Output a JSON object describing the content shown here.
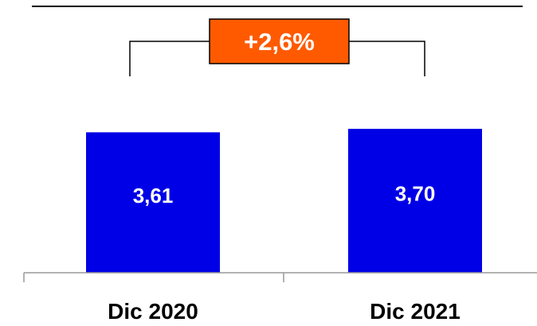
{
  "chart_data": {
    "type": "bar",
    "title": "",
    "xlabel": "",
    "ylabel": "",
    "categories": [
      "Dic 2020",
      "Dic 2021"
    ],
    "values": [
      3.61,
      3.7
    ],
    "value_labels": [
      "3,61",
      "3,70"
    ],
    "ylim": [
      0,
      3.7
    ],
    "grid": false,
    "bar_color": "#0000e6",
    "annotation": {
      "text": "+2,6%",
      "background": "#ff5a00",
      "border": "#000000",
      "text_color": "#ffffff"
    }
  }
}
